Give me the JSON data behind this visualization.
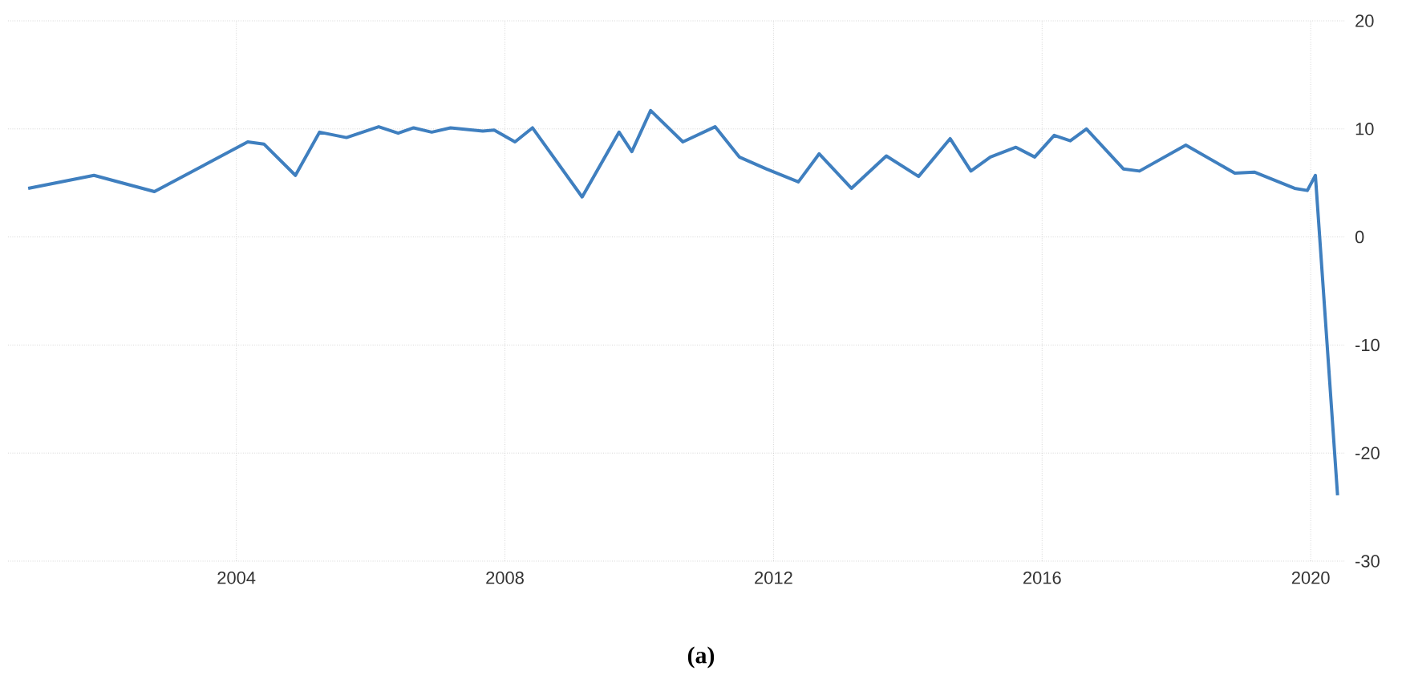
{
  "chart_data": {
    "type": "line",
    "x": [
      2000.9,
      2001.88,
      2002.78,
      2004.17,
      2004.41,
      2004.88,
      2005.24,
      2005.64,
      2006.12,
      2006.41,
      2006.64,
      2006.91,
      2007.19,
      2007.67,
      2007.84,
      2008.15,
      2008.41,
      2009.15,
      2009.7,
      2009.89,
      2010.17,
      2010.65,
      2011.13,
      2011.49,
      2011.89,
      2012.37,
      2012.68,
      2013.16,
      2013.68,
      2014.16,
      2014.63,
      2014.94,
      2015.23,
      2015.61,
      2015.89,
      2016.18,
      2016.42,
      2016.66,
      2017.21,
      2017.45,
      2018.14,
      2018.87,
      2019.16,
      2019.76,
      2019.95,
      2020.07,
      2020.4
    ],
    "series": [
      {
        "color": "#3f7fbf",
        "values": [
          4.5,
          5.7,
          4.2,
          8.8,
          8.6,
          5.7,
          9.7,
          9.2,
          10.2,
          9.6,
          10.1,
          9.7,
          10.1,
          9.8,
          9.9,
          8.8,
          10.1,
          3.7,
          9.7,
          7.9,
          11.7,
          8.8,
          10.2,
          7.4,
          6.3,
          5.1,
          7.7,
          4.5,
          7.5,
          5.6,
          9.1,
          6.1,
          7.4,
          8.3,
          7.4,
          9.4,
          8.9,
          10.0,
          6.3,
          6.1,
          8.5,
          5.9,
          6.0,
          4.5,
          4.3,
          5.7,
          -23.9
        ]
      }
    ],
    "xlim": [
      2000.6,
      2020.5
    ],
    "ylim": [
      -30,
      20
    ],
    "xticks": [
      2004,
      2008,
      2012,
      2016,
      2020
    ],
    "yticks": [
      -30,
      -20,
      -10,
      0,
      10,
      20
    ],
    "grid": true,
    "marker": "none",
    "line_style": "solid",
    "annotations": [
      "**(a)**"
    ]
  }
}
